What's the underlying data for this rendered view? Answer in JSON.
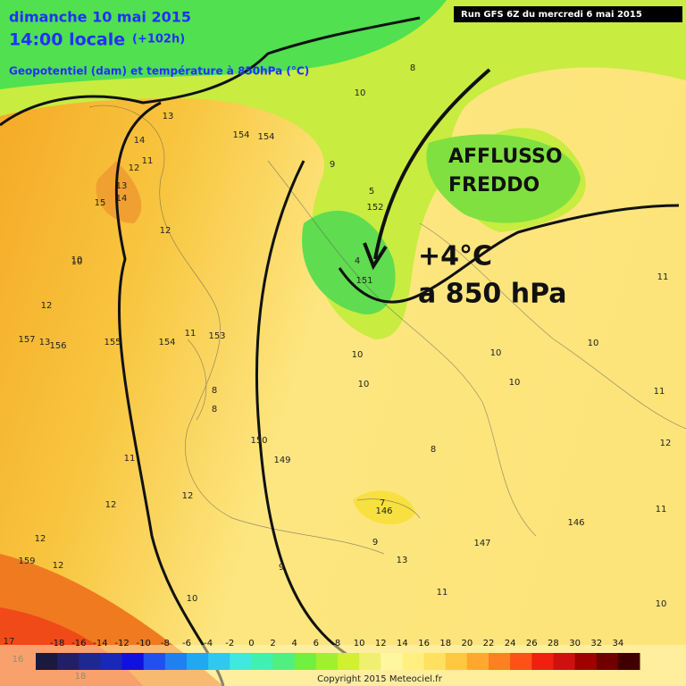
{
  "header": {
    "date": "dimanche 10 mai 2015",
    "time": "14:00 locale",
    "lead": "(+102h)",
    "field": "Geopotentiel (dam) et température à 850hPa (°C)",
    "run": "Run GFS 6Z du mercredi 6 mai 2015"
  },
  "annotations": {
    "line1": "AFFLUSSO",
    "line2": "FREDDO",
    "temp": "+4°C",
    "level": "a 850 hPa"
  },
  "contour_labels": [
    13,
    14,
    12,
    13,
    15,
    14,
    12,
    10,
    157,
    156,
    155,
    154,
    153,
    150,
    149,
    146,
    147,
    146,
    13,
    12,
    12,
    12,
    10,
    9,
    8,
    5,
    4,
    151,
    152,
    10,
    10,
    10,
    10,
    8,
    9,
    11,
    11,
    11,
    12,
    11,
    10,
    9,
    13,
    12,
    11,
    159,
    17,
    16,
    18,
    10,
    11,
    8,
    7,
    10,
    11,
    10,
    12,
    154,
    154,
    8
  ],
  "colorbar": {
    "ticks": [
      -18,
      -16,
      -14,
      -12,
      -10,
      -8,
      -6,
      -4,
      -2,
      0,
      2,
      4,
      6,
      8,
      10,
      12,
      14,
      16,
      18,
      20,
      22,
      24,
      26,
      28,
      30,
      32,
      34
    ],
    "colors": [
      "#1a1a40",
      "#202068",
      "#1c2a90",
      "#1828b8",
      "#1010e0",
      "#2050f0",
      "#2080f0",
      "#20a8f0",
      "#30c8f0",
      "#40e8e0",
      "#40f0b0",
      "#50f080",
      "#70f040",
      "#a0f030",
      "#d0f030",
      "#f0f070",
      "#fff7a0",
      "#fff080",
      "#ffe060",
      "#ffc840",
      "#ffa830",
      "#ff8020",
      "#ff5018",
      "#f02010",
      "#d01010",
      "#a00000",
      "#700000",
      "#400000"
    ]
  },
  "copyright": "Copyright 2015 Meteociel.fr"
}
